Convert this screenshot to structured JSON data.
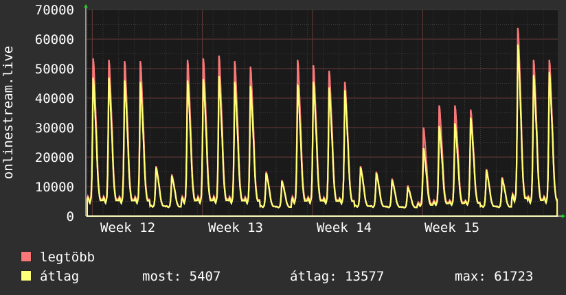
{
  "chart_data": {
    "type": "area",
    "ylabel": "onlinestream.live",
    "ylim": [
      0,
      70000
    ],
    "y_ticks": [
      "0",
      "10000",
      "20000",
      "30000",
      "40000",
      "50000",
      "60000",
      "70000"
    ],
    "x_ticks": [
      "Week 12",
      "Week 13",
      "Week 14",
      "Week 15"
    ],
    "grid": true,
    "series": [
      {
        "name": "legtöbb",
        "color": "#f87878",
        "daily_peaks": [
          56500,
          56000,
          55500,
          55500,
          17500,
          14500,
          56000,
          56500,
          57500,
          55500,
          53500,
          15500,
          12500,
          56000,
          54000,
          52000,
          48000,
          17500,
          15500,
          13000,
          10500,
          31500,
          39500,
          39500,
          38000,
          16500,
          13500,
          67500,
          56000,
          56000
        ]
      },
      {
        "name": "átlag",
        "color": "#ffff78",
        "daily_peaks": [
          49500,
          49500,
          48500,
          48000,
          17000,
          14000,
          48500,
          49000,
          50000,
          48000,
          46500,
          15000,
          12000,
          47000,
          48000,
          46000,
          45000,
          17000,
          15000,
          12500,
          10000,
          24000,
          32000,
          33000,
          35000,
          16000,
          13000,
          61500,
          50500,
          51500
        ]
      }
    ]
  },
  "legend": {
    "items": [
      {
        "label": "legtöbb",
        "color": "#f87878"
      },
      {
        "label": "átlag",
        "color": "#ffff78"
      }
    ],
    "stats": {
      "now": "most: 5407",
      "avg": "átlag: 13577",
      "max": "max: 61723"
    }
  }
}
